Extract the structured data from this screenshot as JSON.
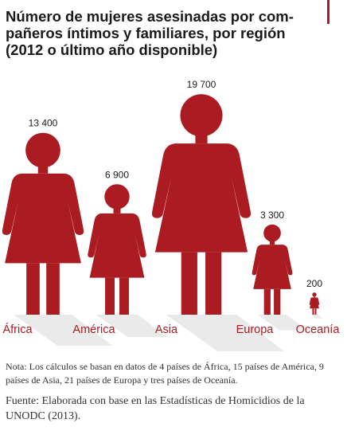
{
  "colors": {
    "accent": "#ab1c22",
    "text": "#1a1a1a",
    "shadow": "#d9d9d9"
  },
  "title_lines": [
    "Número de mujeres asesinadas por com-",
    "pañeros íntimos y familiares, por región",
    "(2012 o último año disponible)"
  ],
  "chart_data": {
    "type": "pictograph",
    "title": "Número de mujeres asesinadas por compañeros íntimos y familiares, por región (2012 o último año disponible)",
    "icon": "woman-figure-icon",
    "categories": [
      "África",
      "América",
      "Asia",
      "Europa",
      "Oceanía"
    ],
    "values": [
      13400,
      6900,
      19700,
      3300,
      200
    ],
    "value_labels": [
      "13 400",
      "6 900",
      "19 700",
      "3 300",
      "200"
    ],
    "scaling": "figure area proportional to value"
  },
  "note": "Nota: Los cálculos se basan en datos de 4 países de África, 15 países de América, 9 países de Asia, 21 países de Europa y tres países de Oceanía.",
  "source": "Fuente: Elaborada con base en las Estadísticas de Homicidios de la UNODC (2013)."
}
